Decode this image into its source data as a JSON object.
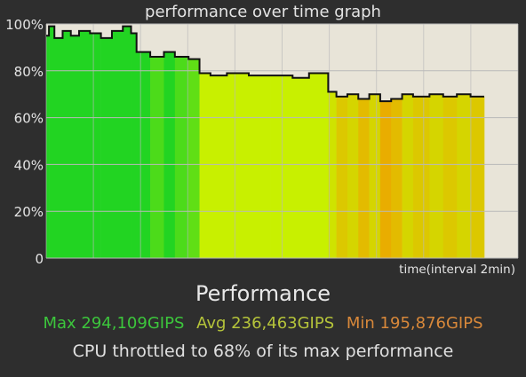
{
  "chart_data": {
    "type": "area",
    "title": "performance over time graph",
    "xlabel": "time(interval 2min)",
    "ylabel": "",
    "ylim": [
      0,
      100
    ],
    "yticks": [
      "0",
      "20%",
      "40%",
      "60%",
      "80%",
      "100%"
    ],
    "grid": true,
    "x_unit": "sample",
    "x_range": [
      0,
      160
    ],
    "segments": [
      {
        "from": 0,
        "to": 1,
        "value": 95
      },
      {
        "from": 1,
        "to": 3,
        "value": 99
      },
      {
        "from": 3,
        "to": 6,
        "value": 94
      },
      {
        "from": 6,
        "to": 9,
        "value": 97
      },
      {
        "from": 9,
        "to": 12,
        "value": 95
      },
      {
        "from": 12,
        "to": 16,
        "value": 97
      },
      {
        "from": 16,
        "to": 20,
        "value": 96
      },
      {
        "from": 20,
        "to": 24,
        "value": 94
      },
      {
        "from": 24,
        "to": 28,
        "value": 97
      },
      {
        "from": 28,
        "to": 31,
        "value": 99
      },
      {
        "from": 31,
        "to": 33,
        "value": 96
      },
      {
        "from": 33,
        "to": 38,
        "value": 88
      },
      {
        "from": 38,
        "to": 43,
        "value": 86
      },
      {
        "from": 43,
        "to": 47,
        "value": 88
      },
      {
        "from": 47,
        "to": 52,
        "value": 86
      },
      {
        "from": 52,
        "to": 56,
        "value": 85
      },
      {
        "from": 56,
        "to": 60,
        "value": 79
      },
      {
        "from": 60,
        "to": 66,
        "value": 78
      },
      {
        "from": 66,
        "to": 74,
        "value": 79
      },
      {
        "from": 74,
        "to": 82,
        "value": 78
      },
      {
        "from": 82,
        "to": 90,
        "value": 78
      },
      {
        "from": 90,
        "to": 96,
        "value": 77
      },
      {
        "from": 96,
        "to": 103,
        "value": 79
      },
      {
        "from": 103,
        "to": 106,
        "value": 71
      },
      {
        "from": 106,
        "to": 110,
        "value": 69
      },
      {
        "from": 110,
        "to": 114,
        "value": 70
      },
      {
        "from": 114,
        "to": 118,
        "value": 68
      },
      {
        "from": 118,
        "to": 122,
        "value": 70
      },
      {
        "from": 122,
        "to": 126,
        "value": 67
      },
      {
        "from": 126,
        "to": 130,
        "value": 68
      },
      {
        "from": 130,
        "to": 134,
        "value": 70
      },
      {
        "from": 134,
        "to": 140,
        "value": 69
      },
      {
        "from": 140,
        "to": 145,
        "value": 70
      },
      {
        "from": 145,
        "to": 150,
        "value": 69
      },
      {
        "from": 150,
        "to": 155,
        "value": 70
      },
      {
        "from": 155,
        "to": 160,
        "value": 69
      }
    ],
    "colors": {
      "plot_background": "#e8e4d8",
      "grid": "#b9b9b9",
      "outline": "#111111",
      "high": "#22d422",
      "mid": "#c8f000",
      "low": "#f0a000"
    }
  },
  "summary": {
    "heading": "Performance",
    "max_label": "Max 294,109GIPS",
    "avg_label": "Avg 236,463GIPS",
    "min_label": "Min 195,876GIPS",
    "throttle_note": "CPU throttled to 68% of its max performance"
  }
}
